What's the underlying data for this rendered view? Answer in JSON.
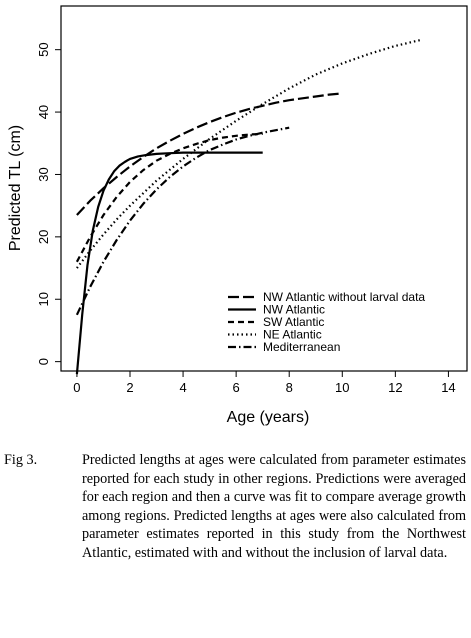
{
  "chart_data": {
    "type": "line",
    "xlabel": "Age (years)",
    "ylabel": "Predicted TL (cm)",
    "xlim": [
      -0.6,
      14.7
    ],
    "ylim": [
      -1.5,
      57
    ],
    "xticks": [
      0,
      2,
      4,
      6,
      8,
      10,
      12,
      14
    ],
    "yticks": [
      0,
      10,
      20,
      30,
      40,
      50
    ],
    "grid": false,
    "legend_position": "bottom-right",
    "series": [
      {
        "name": "NW Atlantic without larval data",
        "style": "long-dash",
        "x": [
          0,
          0.5,
          1,
          1.5,
          2,
          2.5,
          3,
          3.5,
          4,
          4.5,
          5,
          5.5,
          6,
          6.5,
          7,
          7.5,
          8,
          8.5,
          9,
          9.5,
          10
        ],
        "y": [
          23.5,
          25.8,
          27.8,
          29.6,
          31.3,
          32.8,
          34.2,
          35.4,
          36.5,
          37.5,
          38.4,
          39.2,
          39.9,
          40.5,
          41.0,
          41.5,
          41.9,
          42.2,
          42.5,
          42.8,
          43.0
        ]
      },
      {
        "name": "NW Atlantic",
        "style": "solid",
        "x": [
          0,
          0.2,
          0.4,
          0.6,
          0.8,
          1.0,
          1.2,
          1.4,
          1.6,
          1.8,
          2.0,
          2.3,
          2.6,
          3.0,
          3.5,
          4,
          5,
          6,
          7
        ],
        "y": [
          -2,
          7.5,
          15.5,
          21.0,
          24.8,
          27.4,
          29.2,
          30.5,
          31.4,
          32.0,
          32.5,
          32.9,
          33.1,
          33.3,
          33.4,
          33.5,
          33.5,
          33.5,
          33.5
        ]
      },
      {
        "name": "SW Atlantic",
        "style": "short-dash",
        "x": [
          0,
          0.5,
          1,
          1.5,
          2,
          2.5,
          3,
          3.5,
          4,
          4.5,
          5,
          5.5,
          6,
          6.5,
          7
        ],
        "y": [
          16.0,
          20.0,
          23.5,
          26.4,
          28.8,
          30.7,
          32.2,
          33.3,
          34.2,
          34.9,
          35.5,
          35.9,
          36.2,
          36.4,
          36.5
        ]
      },
      {
        "name": "NE Atlantic",
        "style": "dotted",
        "x": [
          0,
          0.5,
          1,
          1.5,
          2,
          3,
          4,
          5,
          6,
          7,
          8,
          9,
          10,
          11,
          12,
          13
        ],
        "y": [
          15.0,
          17.8,
          20.4,
          22.8,
          25.0,
          29.0,
          32.5,
          35.7,
          38.6,
          41.3,
          43.8,
          46.0,
          47.8,
          49.3,
          50.6,
          51.6
        ]
      },
      {
        "name": "Mediterranean",
        "style": "dash-dot",
        "x": [
          0,
          0.5,
          1,
          1.5,
          2,
          2.5,
          3,
          3.5,
          4,
          4.5,
          5,
          5.5,
          6,
          6.5,
          7,
          7.5,
          8
        ],
        "y": [
          7.5,
          12.0,
          16.0,
          19.5,
          22.6,
          25.3,
          27.6,
          29.6,
          31.3,
          32.7,
          33.9,
          34.8,
          35.6,
          36.2,
          36.7,
          37.1,
          37.5
        ]
      }
    ]
  },
  "caption": {
    "label": "Fig 3.",
    "text": "Predicted lengths at ages were calculated from parameter estimates reported for each study in other regions. Predictions were averaged for each region and then a curve was fit to compare average growth among regions. Predicted lengths at ages were also calculated from parameter estimates reported in this study from the Northwest Atlantic, estimated with and without the inclusion of larval data."
  }
}
